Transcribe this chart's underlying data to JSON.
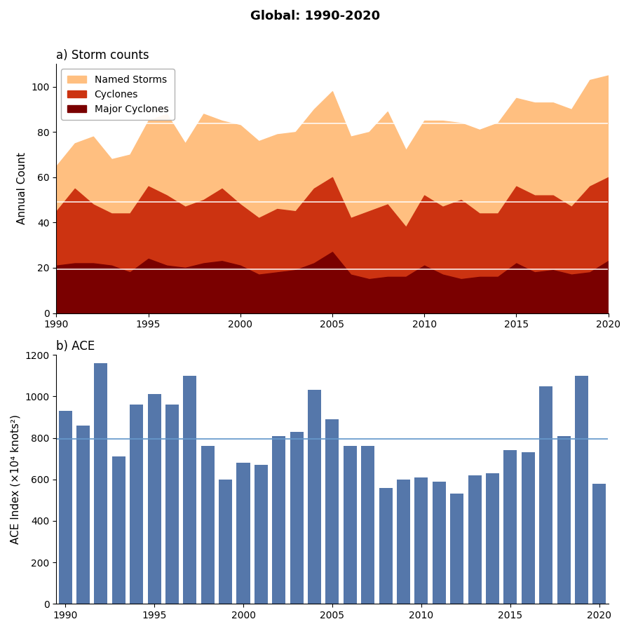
{
  "title": "Global: 1990-2020",
  "years": [
    1990,
    1991,
    1992,
    1993,
    1994,
    1995,
    1996,
    1997,
    1998,
    1999,
    2000,
    2001,
    2002,
    2003,
    2004,
    2005,
    2006,
    2007,
    2008,
    2009,
    2010,
    2011,
    2012,
    2013,
    2014,
    2015,
    2016,
    2017,
    2018,
    2019,
    2020
  ],
  "named_storms": [
    65,
    75,
    78,
    68,
    70,
    85,
    88,
    75,
    88,
    85,
    83,
    76,
    79,
    80,
    90,
    98,
    78,
    80,
    89,
    72,
    85,
    85,
    84,
    81,
    84,
    95,
    93,
    93,
    90,
    103,
    105
  ],
  "cyclones": [
    45,
    55,
    48,
    44,
    44,
    56,
    52,
    47,
    50,
    55,
    48,
    42,
    46,
    45,
    55,
    60,
    42,
    45,
    48,
    38,
    52,
    47,
    50,
    44,
    44,
    56,
    52,
    52,
    47,
    56,
    60
  ],
  "major_cyclones": [
    21,
    22,
    22,
    21,
    18,
    24,
    21,
    20,
    22,
    23,
    21,
    17,
    18,
    19,
    22,
    27,
    17,
    15,
    16,
    16,
    21,
    17,
    15,
    16,
    16,
    22,
    18,
    19,
    17,
    18,
    23
  ],
  "ace_values": [
    930,
    860,
    1160,
    710,
    960,
    1010,
    960,
    1100,
    760,
    600,
    680,
    670,
    810,
    830,
    1030,
    890,
    760,
    760,
    560,
    600,
    610,
    590,
    530,
    620,
    630,
    740,
    730,
    1050,
    810,
    1100,
    580
  ],
  "named_storms_color": "#FFBF80",
  "cyclones_color": "#CC3311",
  "major_cyclones_color": "#7A0000",
  "bar_color": "#5577AA",
  "subplot_a_label": "a) Storm counts",
  "subplot_b_label": "b) ACE",
  "ylabel_a": "Annual Count",
  "ylabel_b": "ACE Index (×10⁴ knots²)",
  "ylim_a": [
    0,
    110
  ],
  "ylim_b": [
    0,
    1200
  ],
  "mean_line_color": "white",
  "ace_mean_line_color": "#6699CC"
}
